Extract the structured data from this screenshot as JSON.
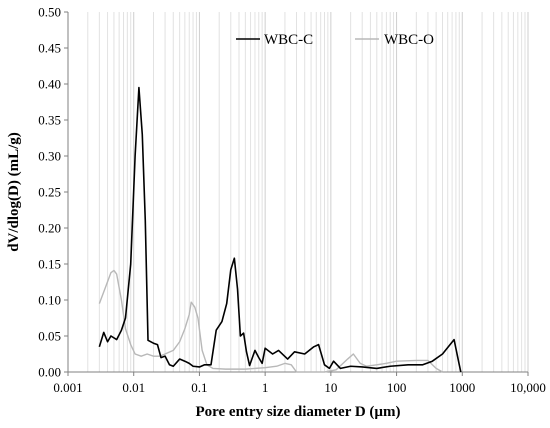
{
  "chart_data": {
    "type": "line",
    "title": "",
    "xlabel": "Pore entry size diameter D (µm)",
    "ylabel": "dV/dlog(D) (mL/g)",
    "x_scale": "log",
    "xlim": [
      0.001,
      10000
    ],
    "ylim": [
      0,
      0.5
    ],
    "x_ticks": [
      0.001,
      0.01,
      0.1,
      1,
      10,
      100,
      1000,
      10000
    ],
    "x_tick_labels": [
      "0.001",
      "0.01",
      "0.1",
      "1",
      "10",
      "100",
      "1000",
      "10,000"
    ],
    "y_ticks": [
      0,
      0.05,
      0.1,
      0.15,
      0.2,
      0.25,
      0.3,
      0.35,
      0.4,
      0.45,
      0.5
    ],
    "y_tick_labels": [
      "0.00",
      "0.05",
      "0.10",
      "0.15",
      "0.20",
      "0.25",
      "0.30",
      "0.35",
      "0.40",
      "0.45",
      "0.50"
    ],
    "grid": "vertical minor log gridlines",
    "legend_position": "top",
    "series": [
      {
        "name": "WBC-C",
        "color": "#000000",
        "points": [
          [
            0.003,
            0.035
          ],
          [
            0.0035,
            0.055
          ],
          [
            0.004,
            0.042
          ],
          [
            0.0045,
            0.05
          ],
          [
            0.0055,
            0.045
          ],
          [
            0.0065,
            0.058
          ],
          [
            0.0075,
            0.075
          ],
          [
            0.009,
            0.15
          ],
          [
            0.0105,
            0.3
          ],
          [
            0.012,
            0.395
          ],
          [
            0.0135,
            0.33
          ],
          [
            0.015,
            0.21
          ],
          [
            0.0165,
            0.044
          ],
          [
            0.02,
            0.04
          ],
          [
            0.023,
            0.038
          ],
          [
            0.026,
            0.02
          ],
          [
            0.03,
            0.022
          ],
          [
            0.035,
            0.01
          ],
          [
            0.04,
            0.008
          ],
          [
            0.05,
            0.018
          ],
          [
            0.06,
            0.015
          ],
          [
            0.07,
            0.012
          ],
          [
            0.08,
            0.008
          ],
          [
            0.1,
            0.007
          ],
          [
            0.12,
            0.01
          ],
          [
            0.15,
            0.01
          ],
          [
            0.18,
            0.058
          ],
          [
            0.22,
            0.07
          ],
          [
            0.26,
            0.095
          ],
          [
            0.3,
            0.142
          ],
          [
            0.34,
            0.158
          ],
          [
            0.38,
            0.115
          ],
          [
            0.42,
            0.05
          ],
          [
            0.47,
            0.054
          ],
          [
            0.52,
            0.028
          ],
          [
            0.58,
            0.009
          ],
          [
            0.7,
            0.03
          ],
          [
            0.8,
            0.02
          ],
          [
            0.9,
            0.012
          ],
          [
            1,
            0.033
          ],
          [
            1.3,
            0.025
          ],
          [
            1.6,
            0.03
          ],
          [
            2.2,
            0.018
          ],
          [
            2.8,
            0.028
          ],
          [
            4,
            0.025
          ],
          [
            5.5,
            0.035
          ],
          [
            6.5,
            0.038
          ],
          [
            8,
            0.01
          ],
          [
            9.5,
            0.005
          ],
          [
            11,
            0.015
          ],
          [
            14,
            0.005
          ],
          [
            20,
            0.008
          ],
          [
            30,
            0.007
          ],
          [
            50,
            0.005
          ],
          [
            80,
            0.008
          ],
          [
            150,
            0.01
          ],
          [
            250,
            0.01
          ],
          [
            350,
            0.015
          ],
          [
            500,
            0.025
          ],
          [
            750,
            0.045
          ],
          [
            900,
            0.01
          ],
          [
            950,
            0.0
          ]
        ]
      },
      {
        "name": "WBC-O",
        "color": "#b8b8b8",
        "points": [
          [
            0.003,
            0.095
          ],
          [
            0.0038,
            0.12
          ],
          [
            0.0045,
            0.138
          ],
          [
            0.005,
            0.141
          ],
          [
            0.0055,
            0.136
          ],
          [
            0.0065,
            0.1
          ],
          [
            0.0075,
            0.06
          ],
          [
            0.009,
            0.038
          ],
          [
            0.0105,
            0.025
          ],
          [
            0.013,
            0.022
          ],
          [
            0.016,
            0.025
          ],
          [
            0.02,
            0.022
          ],
          [
            0.025,
            0.022
          ],
          [
            0.03,
            0.025
          ],
          [
            0.04,
            0.03
          ],
          [
            0.05,
            0.042
          ],
          [
            0.06,
            0.06
          ],
          [
            0.07,
            0.08
          ],
          [
            0.075,
            0.097
          ],
          [
            0.085,
            0.09
          ],
          [
            0.095,
            0.075
          ],
          [
            0.11,
            0.03
          ],
          [
            0.13,
            0.01
          ],
          [
            0.16,
            0.005
          ],
          [
            0.25,
            0.004
          ],
          [
            0.5,
            0.004
          ],
          [
            1,
            0.006
          ],
          [
            1.5,
            0.008
          ],
          [
            2,
            0.012
          ],
          [
            2.5,
            0.01
          ],
          [
            3,
            0.0
          ],
          [
            8,
            0.0
          ],
          [
            12,
            0.003
          ],
          [
            18,
            0.018
          ],
          [
            22,
            0.025
          ],
          [
            28,
            0.012
          ],
          [
            35,
            0.008
          ],
          [
            50,
            0.01
          ],
          [
            70,
            0.012
          ],
          [
            100,
            0.015
          ],
          [
            200,
            0.016
          ],
          [
            300,
            0.016
          ],
          [
            400,
            0.005
          ],
          [
            500,
            0.0
          ]
        ]
      }
    ]
  }
}
